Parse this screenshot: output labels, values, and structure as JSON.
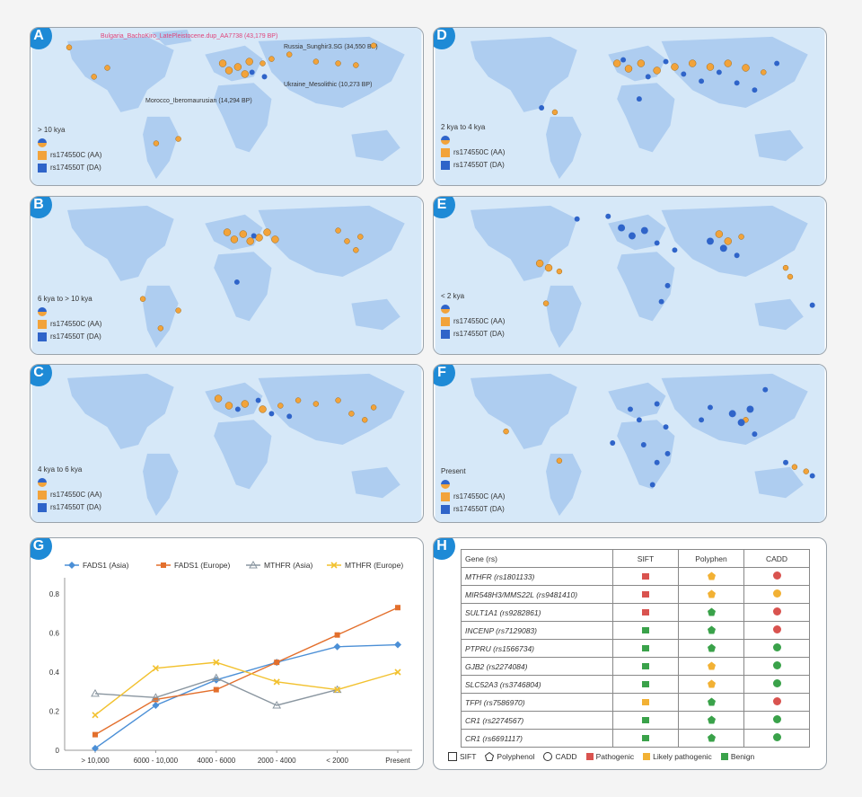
{
  "panels": [
    {
      "badge": "A",
      "period": "> 10 kya",
      "aa": "rs174550C (AA)",
      "da": "rs174550T (DA)",
      "annotations": [
        "Bulgaria_BachoKiro_LatePleistocene.dup_AA7738 (43,179 BP)",
        "Russia_Sunghir3.SG (34,550 BP)",
        "Ukraine_Mesolithic (10,273 BP)",
        "Morocco_Iberomaurusian (14,294 BP)"
      ]
    },
    {
      "badge": "B",
      "period": "6 kya to > 10 kya",
      "aa": "rs174550C (AA)",
      "da": "rs174550T (DA)"
    },
    {
      "badge": "C",
      "period": "4 kya to 6 kya",
      "aa": "rs174550C (AA)",
      "da": "rs174550T (DA)"
    },
    {
      "badge": "D",
      "period": "2 kya to 4 kya",
      "aa": "rs174550C (AA)",
      "da": "rs174550T (DA)"
    },
    {
      "badge": "E",
      "period": "< 2 kya",
      "aa": "rs174550C (AA)",
      "da": "rs174550T (DA)"
    },
    {
      "badge": "F",
      "period": "Present",
      "aa": "rs174550C (AA)",
      "da": "rs174550T (DA)"
    }
  ],
  "colors": {
    "ocean": "#d6e8f8",
    "land": "#aecdf0",
    "aa": "#f2a33a",
    "da": "#2f64c9",
    "badge": "#1e8ad6"
  },
  "chart_g": {
    "badge": "G",
    "chart_data": {
      "type": "line",
      "categories": [
        "> 10,000",
        "6000 - 10,000",
        "4000 - 6000",
        "2000 - 4000",
        "< 2000",
        "Present"
      ],
      "ylim": [
        0,
        0.8
      ],
      "yticks": [
        "0",
        "0.2",
        "0.4",
        "0.6",
        "0.8"
      ],
      "series": [
        {
          "name": "FADS1 (Asia)",
          "color": "#4b8fd6",
          "marker": "diamond",
          "values": [
            0.01,
            0.23,
            0.36,
            0.45,
            0.53,
            0.54
          ]
        },
        {
          "name": "FADS1 (Europe)",
          "color": "#e36f2c",
          "marker": "square",
          "values": [
            0.08,
            0.26,
            0.31,
            0.45,
            0.59,
            0.73
          ]
        },
        {
          "name": "MTHFR (Asia)",
          "color": "#8a96a0",
          "marker": "triangle",
          "values": [
            0.29,
            0.27,
            0.37,
            0.23,
            0.31,
            null
          ]
        },
        {
          "name": "MTHFR (Europe)",
          "color": "#f2c12e",
          "marker": "x",
          "values": [
            0.18,
            0.42,
            0.45,
            0.35,
            0.31,
            0.4
          ]
        }
      ]
    }
  },
  "table_h": {
    "badge": "H",
    "headers": [
      "Gene (rs)",
      "SIFT",
      "Polyphen",
      "CADD"
    ],
    "rows": [
      {
        "gene": "MTHFR (rs1801133)",
        "sift": "#d9534f",
        "poly": "#f2b134",
        "cadd": "#d9534f"
      },
      {
        "gene": "MIR548H3/MMS22L (rs9481410)",
        "sift": "#d9534f",
        "poly": "#f2b134",
        "cadd": "#f2b134"
      },
      {
        "gene": "SULT1A1 (rs9282861)",
        "sift": "#d9534f",
        "poly": "#3aa24a",
        "cadd": "#d9534f"
      },
      {
        "gene": "INCENP (rs7129083)",
        "sift": "#3aa24a",
        "poly": "#3aa24a",
        "cadd": "#d9534f"
      },
      {
        "gene": "PTPRU (rs1566734)",
        "sift": "#3aa24a",
        "poly": "#3aa24a",
        "cadd": "#3aa24a"
      },
      {
        "gene": "GJB2 (rs2274084)",
        "sift": "#3aa24a",
        "poly": "#f2b134",
        "cadd": "#3aa24a"
      },
      {
        "gene": "SLC52A3 (rs3746804)",
        "sift": "#3aa24a",
        "poly": "#f2b134",
        "cadd": "#3aa24a"
      },
      {
        "gene": "TFPI (rs7586970)",
        "sift": "#f2b134",
        "poly": "#3aa24a",
        "cadd": "#d9534f"
      },
      {
        "gene": "CR1 (rs2274567)",
        "sift": "#3aa24a",
        "poly": "#3aa24a",
        "cadd": "#3aa24a"
      },
      {
        "gene": "CR1 (rs6691117)",
        "sift": "#3aa24a",
        "poly": "#3aa24a",
        "cadd": "#3aa24a"
      }
    ],
    "legend": {
      "sift": "SIFT",
      "poly": "Polyphenol",
      "cadd": "CADD",
      "pathogenic": "Pathogenic",
      "likely": "Likely pathogenic",
      "benign": "Benign"
    }
  }
}
